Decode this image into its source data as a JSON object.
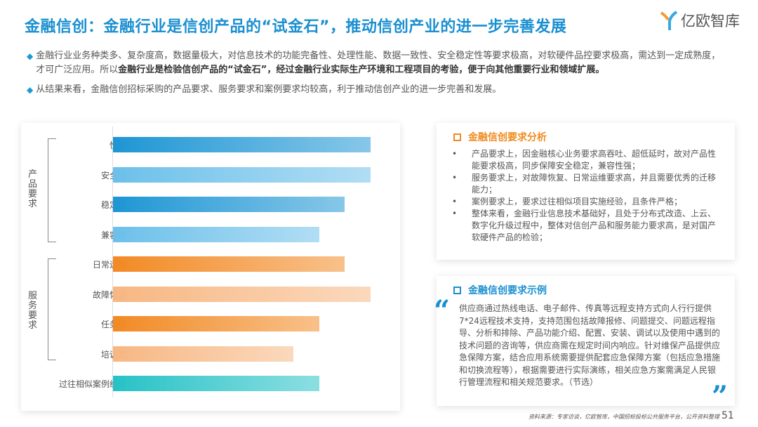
{
  "title": "金融信创：金融行业是信创产品的“试金石”，推动信创产业的进一步完善发展",
  "logo": {
    "text": "亿欧智库"
  },
  "bullets": [
    {
      "plain": "金融行业业务种类多、复杂度高，数据量极大，对信息技术的功能完备性、处理性能、数据一致性、安全稳定性等要求极高，对软硬件品控要求极高，需达到一定成熟度，才可广泛应用。所以",
      "bold": "金融行业是检验信创产品的“试金石”，经过金融行业实际生产环境和工程项目的考验，便于向其他重要行业和领域扩展。"
    },
    {
      "plain": "从结果来看，金融信创招标采购的产品要求、服务要求和案例要求均较高，利于推动信创产业的进一步完善和发展。",
      "bold": ""
    }
  ],
  "chart_data": {
    "type": "bar",
    "orientation": "horizontal",
    "groups": [
      {
        "name": "产品要求",
        "members": [
          "性能",
          "安全性",
          "稳定性",
          "兼容性"
        ]
      },
      {
        "name": "服务要求",
        "members": [
          "日常运维",
          "故障恢复",
          "任务类",
          "培训类"
        ]
      }
    ],
    "categories": [
      "性能",
      "安全性",
      "稳定性",
      "兼容性",
      "日常运维",
      "故障恢复",
      "任务类",
      "培训类",
      "过往相似案例经验"
    ],
    "values": [
      10,
      10,
      9,
      8,
      9,
      10,
      8,
      7,
      8
    ],
    "value_note": "relative requirement level (no axis shown)",
    "xlim": [
      0,
      10
    ],
    "colors": [
      "#1e96d4",
      "#6cc0ea",
      "#1e96d4",
      "#6cc0ea",
      "#f28a24",
      "#f7b782",
      "#f28a24",
      "#f7b782",
      "#27c2c6"
    ]
  },
  "panel1": {
    "title": "金融信创要求分析",
    "items": [
      "产品要求上，因金融核心业务要求高吞吐、超低延时，故对产品性能要求极高，同步保障安全稳定，兼容性强；",
      "服务要求上，对故障恢复、日常运维要求高，并且需要优秀的迁移能力；",
      "案例要求上，要求过往相似项目实施经验，且条件严格；",
      "整体来看，金融行业信息技术基础好，且处于分布式改造、上云、数字化升级过程中，整体对信创产品和服务能力要求高，是对国产软硬件产品的检验；"
    ],
    "color": "#f08a1e"
  },
  "panel2": {
    "title": "金融信创要求示例",
    "quote": "供应商通过热线电话、电子邮件、传真等远程支持方式向人行行提供7*24远程技术支持，支持范围包括故障报修、问题提交、问题远程指导、分析和排除、产品功能介绍、配置、安装、调试以及使用中遇到的技术问题的咨询等，供应商需在规定时间内响应。针对维保产品提供应急保障方案，结合应用系统需要提供配套应急保障方案（包括应急措施和切换流程等），根据需要进行实际演练，相关应急方案需满足人民银行管理流程和相关规范要求。（节选）",
    "open_quote": "“",
    "close_quote": "”",
    "color": "#1a8fd0"
  },
  "footer": {
    "source": "资料来源：专家访谈，亿欧智库，中国招标投标公共服务平台，公开资料整理",
    "page": "51"
  }
}
